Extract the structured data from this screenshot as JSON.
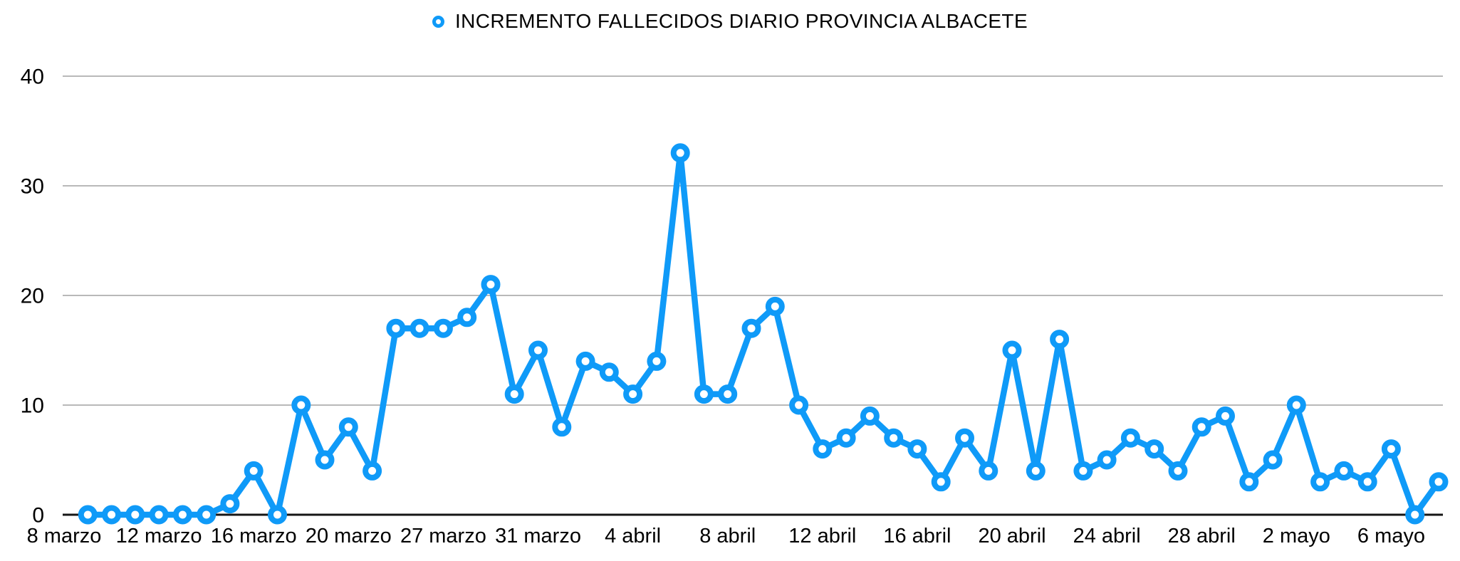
{
  "chart_data": {
    "type": "line",
    "title": "INCREMENTO FALLECIDOS DIARIO PROVINCIA ALBACETE",
    "legend_position": "top-center",
    "legend_marker": "ring",
    "x_labels": [
      "8 marzo",
      "12 marzo",
      "16 marzo",
      "20 marzo",
      "27 marzo",
      "31 marzo",
      "4 abril",
      "8 abril",
      "12 abril",
      "16 abril",
      "20 abril",
      "24 abril",
      "28 abril",
      "2 mayo",
      "6 mayo"
    ],
    "x_label_every_n_slots": 4,
    "num_slots": 59,
    "points_start_slot": 1,
    "values": [
      0,
      0,
      0,
      0,
      0,
      0,
      1,
      4,
      0,
      10,
      5,
      8,
      4,
      17,
      17,
      17,
      18,
      21,
      11,
      15,
      8,
      14,
      13,
      11,
      14,
      33,
      11,
      11,
      17,
      19,
      10,
      6,
      7,
      9,
      7,
      6,
      3,
      7,
      4,
      15,
      4,
      16,
      4,
      5,
      7,
      6,
      4,
      8,
      9,
      3,
      5,
      10,
      3,
      4,
      3,
      6,
      0,
      3
    ],
    "ylim": [
      0,
      40
    ],
    "y_ticks": [
      "0",
      "10",
      "20",
      "30",
      "40"
    ],
    "grid": "horizontal",
    "xlabel": "",
    "ylabel": "",
    "colors": {
      "line": "#0f9af8",
      "marker_fill": "#ffffff",
      "grid": "#b9b9b9",
      "axis": "#161616",
      "text": "#000000",
      "background": "#ffffff"
    }
  }
}
